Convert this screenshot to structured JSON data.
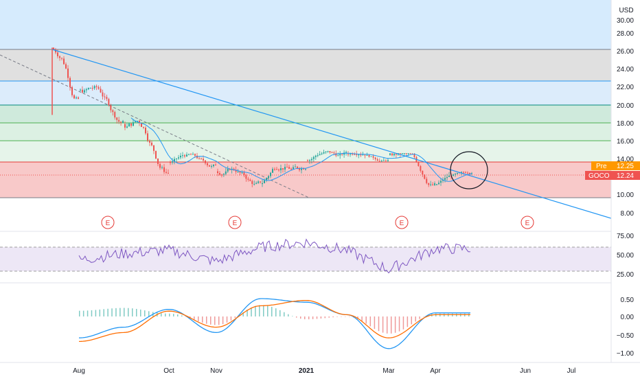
{
  "currency_label": "USD",
  "colors": {
    "up": "#26a69a",
    "down": "#ef5350",
    "trendline": "#2196f3",
    "ma": "#2196f3",
    "rsi": "#7e57c2",
    "macd": "#2196f3",
    "signal": "#ff6d00",
    "earnings": "#e53935",
    "pre_badge": "#ff9800",
    "last_badge": "#ef5350"
  },
  "price_axis": {
    "ticks": [
      "30.00",
      "28.00",
      "26.00",
      "24.00",
      "22.00",
      "20.00",
      "18.00",
      "16.00",
      "14.00",
      "12.00",
      "10.00",
      "8.00"
    ]
  },
  "rsi_axis": {
    "ticks": [
      "75.00",
      "50.00",
      "25.00"
    ]
  },
  "macd_axis": {
    "ticks": [
      "0.50",
      "0.00",
      "−0.50",
      "−1.00"
    ]
  },
  "time_axis": {
    "labels": [
      "Aug",
      "Oct",
      "Nov",
      "2021",
      "Mar",
      "Apr",
      "Jun",
      "Jul"
    ]
  },
  "badges": {
    "pre": {
      "label": "Pre",
      "value": "12.25"
    },
    "last": {
      "label": "GOCO",
      "value": "12.24"
    }
  },
  "earnings_label": "E",
  "chart_data": {
    "type": "candlestick",
    "symbol": "GOCO",
    "currency": "USD",
    "y_range": [
      7,
      31
    ],
    "fib_levels": [
      {
        "value": 26.2,
        "zone": "gray"
      },
      {
        "value": 22.7,
        "zone": "blue"
      },
      {
        "value": 19.95,
        "zone": "green"
      },
      {
        "value": 18.05,
        "zone": "green"
      },
      {
        "value": 16.15,
        "zone": "green"
      },
      {
        "value": 13.75,
        "zone": "red"
      },
      {
        "value": 9.85,
        "zone": "red"
      }
    ],
    "pre_market": 12.25,
    "last_price": 12.24,
    "price_series": [
      {
        "month": "Jul",
        "open": 26.2,
        "high": 26.2,
        "low": 18.8,
        "close": 21.5
      },
      {
        "month": "Aug",
        "open": 21.5,
        "high": 22.4,
        "low": 17.2,
        "close": 17.8
      },
      {
        "month": "Sep",
        "open": 17.8,
        "high": 19.5,
        "low": 12.3,
        "close": 13.6
      },
      {
        "month": "Oct",
        "open": 13.6,
        "high": 15.2,
        "low": 12.0,
        "close": 12.6
      },
      {
        "month": "Nov",
        "open": 12.6,
        "high": 13.8,
        "low": 10.0,
        "close": 11.2
      },
      {
        "month": "Dec",
        "open": 11.2,
        "high": 15.0,
        "low": 10.0,
        "close": 13.8
      },
      {
        "month": "Jan",
        "open": 13.8,
        "high": 16.2,
        "low": 13.2,
        "close": 14.5
      },
      {
        "month": "Feb",
        "open": 14.5,
        "high": 15.6,
        "low": 13.6,
        "close": 14.4
      },
      {
        "month": "Mar",
        "open": 14.4,
        "high": 14.6,
        "low": 10.0,
        "close": 11.1
      },
      {
        "month": "Apr",
        "open": 11.1,
        "high": 12.6,
        "low": 10.6,
        "close": 12.24
      }
    ],
    "rsi_series": [
      {
        "month": "Aug",
        "value": 44
      },
      {
        "month": "Sep",
        "value": 52
      },
      {
        "month": "Oct",
        "value": 56
      },
      {
        "month": "Nov",
        "value": 42
      },
      {
        "month": "Dec",
        "value": 60
      },
      {
        "month": "Jan",
        "value": 66
      },
      {
        "month": "Feb",
        "value": 56
      },
      {
        "month": "Mar",
        "value": 32
      },
      {
        "month": "Apr",
        "value": 58
      }
    ],
    "macd_series": [
      {
        "month": "Aug",
        "macd": -0.6,
        "signal": -0.7
      },
      {
        "month": "Sep",
        "macd": -0.3,
        "signal": -0.45
      },
      {
        "month": "Oct",
        "macd": 0.2,
        "signal": 0.15
      },
      {
        "month": "Nov",
        "macd": -0.45,
        "signal": -0.3
      },
      {
        "month": "Dec",
        "macd": 0.5,
        "signal": 0.3
      },
      {
        "month": "Jan",
        "macd": 0.4,
        "signal": 0.45
      },
      {
        "month": "Feb",
        "macd": 0.05,
        "signal": 0.05
      },
      {
        "month": "Mar",
        "macd": -0.9,
        "signal": -0.6
      },
      {
        "month": "Apr",
        "macd": 0.1,
        "signal": 0.05
      }
    ],
    "rsi_band": [
      30,
      60
    ],
    "earnings_markers": 4
  }
}
